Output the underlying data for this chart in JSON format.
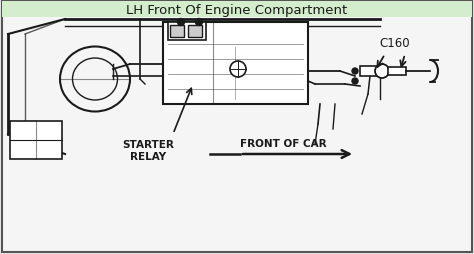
{
  "title": "LH Front Of Engine Compartment",
  "title_bg": "#d4edcc",
  "title_fontsize": 9.5,
  "bg_color": "#e8e8e8",
  "diagram_bg": "#f5f5f5",
  "label_starter_relay": "STARTER\nRELAY",
  "label_front_of_car": "FRONT OF CAR",
  "label_c160": "C160",
  "lc": "#1a1a1a",
  "border_color": "#555555",
  "title_text_color": "#1a1a1a"
}
